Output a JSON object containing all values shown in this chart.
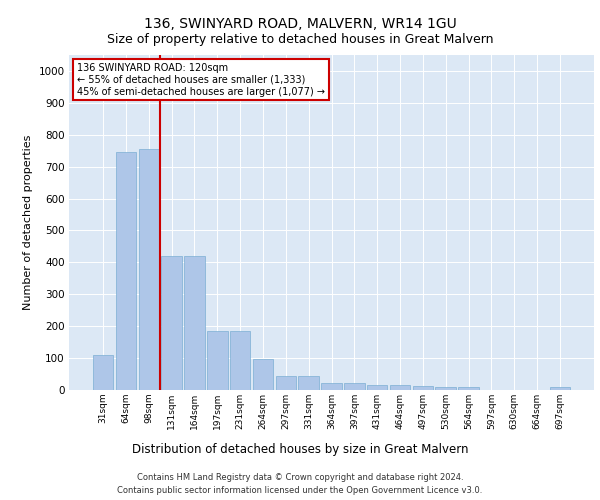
{
  "title": "136, SWINYARD ROAD, MALVERN, WR14 1GU",
  "subtitle": "Size of property relative to detached houses in Great Malvern",
  "xlabel": "Distribution of detached houses by size in Great Malvern",
  "ylabel": "Number of detached properties",
  "categories": [
    "31sqm",
    "64sqm",
    "98sqm",
    "131sqm",
    "164sqm",
    "197sqm",
    "231sqm",
    "264sqm",
    "297sqm",
    "331sqm",
    "364sqm",
    "397sqm",
    "431sqm",
    "464sqm",
    "497sqm",
    "530sqm",
    "564sqm",
    "597sqm",
    "630sqm",
    "664sqm",
    "697sqm"
  ],
  "values": [
    110,
    745,
    755,
    420,
    420,
    185,
    185,
    97,
    45,
    45,
    22,
    22,
    15,
    15,
    13,
    10,
    10,
    0,
    0,
    0,
    8
  ],
  "bar_color": "#aec6e8",
  "bar_edge_color": "#7bafd4",
  "vline_color": "#cc0000",
  "annotation_text": "136 SWINYARD ROAD: 120sqm\n← 55% of detached houses are smaller (1,333)\n45% of semi-detached houses are larger (1,077) →",
  "annotation_box_color": "#ffffff",
  "annotation_box_edge_color": "#cc0000",
  "ylim": [
    0,
    1050
  ],
  "yticks": [
    0,
    100,
    200,
    300,
    400,
    500,
    600,
    700,
    800,
    900,
    1000
  ],
  "plot_bg_color": "#dce8f5",
  "footer_line1": "Contains HM Land Registry data © Crown copyright and database right 2024.",
  "footer_line2": "Contains public sector information licensed under the Open Government Licence v3.0.",
  "title_fontsize": 10,
  "subtitle_fontsize": 9,
  "xlabel_fontsize": 8.5,
  "ylabel_fontsize": 8
}
